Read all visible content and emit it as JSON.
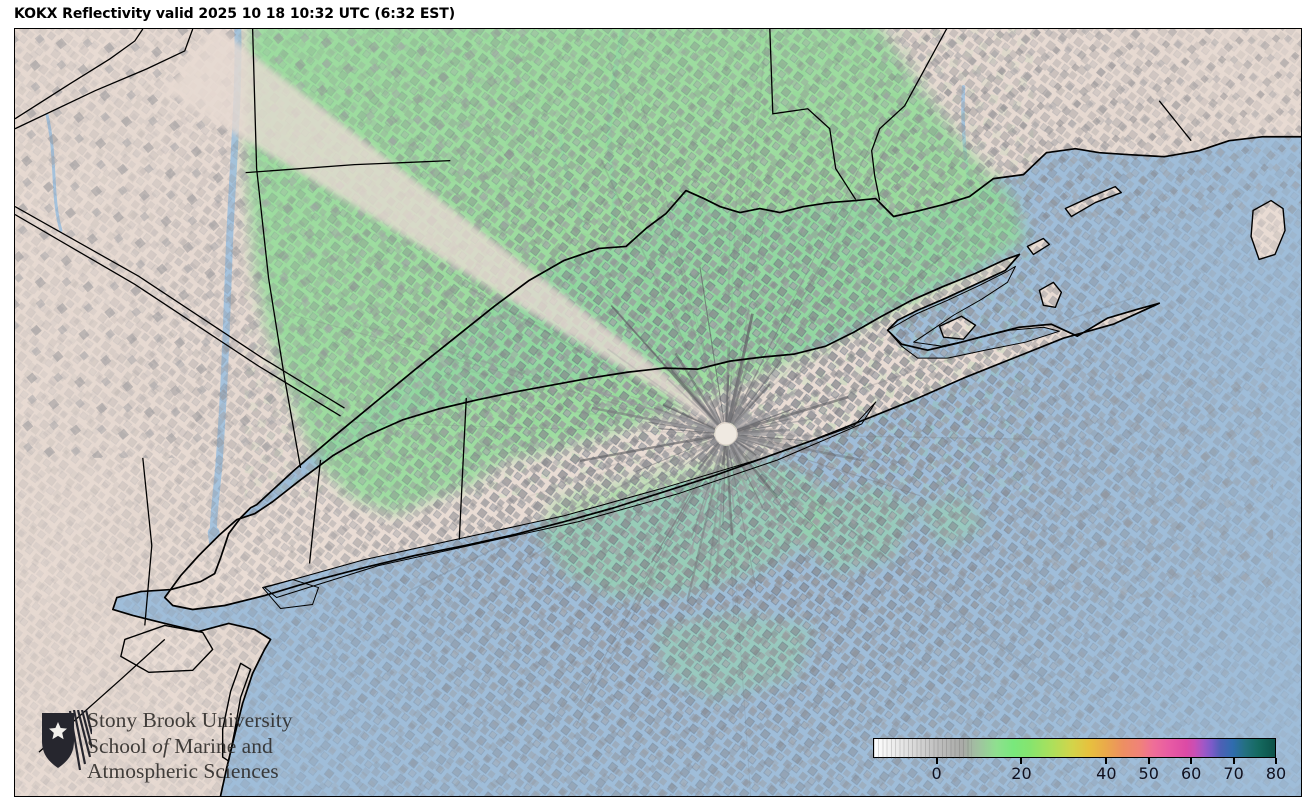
{
  "header": {
    "title": "KOKX Reflectivity valid 2025 10 18 10:32 UTC (6:32 EST)"
  },
  "logo": {
    "line1": "Stony Brook University",
    "line2_pre": "School ",
    "line2_italic": "of",
    "line2_post": " Marine and",
    "line3": "Atmospheric Sciences",
    "shield_icon": "stony-brook-shield"
  },
  "colorbar": {
    "quantity": "reflectivity_dBZ",
    "min": -15,
    "max": 80,
    "ticks": [
      0,
      20,
      40,
      50,
      60,
      70,
      80
    ],
    "stops": [
      {
        "v": -15,
        "c": "#ffffff"
      },
      {
        "v": -8,
        "c": "#e4e4e4"
      },
      {
        "v": 0,
        "c": "#bfbfbf"
      },
      {
        "v": 6,
        "c": "#a9aaa7"
      },
      {
        "v": 10,
        "c": "#9fc49f"
      },
      {
        "v": 14,
        "c": "#8fe08f"
      },
      {
        "v": 18,
        "c": "#79e87c"
      },
      {
        "v": 22,
        "c": "#86e46e"
      },
      {
        "v": 27,
        "c": "#abe05c"
      },
      {
        "v": 32,
        "c": "#d3d44a"
      },
      {
        "v": 36,
        "c": "#e7c13e"
      },
      {
        "v": 40,
        "c": "#eaa94b"
      },
      {
        "v": 44,
        "c": "#ed8f62"
      },
      {
        "v": 48,
        "c": "#f08279"
      },
      {
        "v": 51,
        "c": "#ef6f97"
      },
      {
        "v": 55,
        "c": "#e85ba4"
      },
      {
        "v": 59,
        "c": "#dc4aa5"
      },
      {
        "v": 61,
        "c": "#c94fb4"
      },
      {
        "v": 63,
        "c": "#a257c6"
      },
      {
        "v": 65,
        "c": "#7b5bc9"
      },
      {
        "v": 67,
        "c": "#4e60b6"
      },
      {
        "v": 70,
        "c": "#2f6cae"
      },
      {
        "v": 73,
        "c": "#23707f"
      },
      {
        "v": 76,
        "c": "#156a60"
      },
      {
        "v": 80,
        "c": "#0c5148"
      }
    ]
  },
  "map_colors": {
    "water": "#9fbdd9",
    "land": "#e9dcd4",
    "echo_green": "#8fdc96",
    "clutter_gray": "#8f8f93",
    "outline": "#000000",
    "radar_dot": "#efe9e1"
  }
}
